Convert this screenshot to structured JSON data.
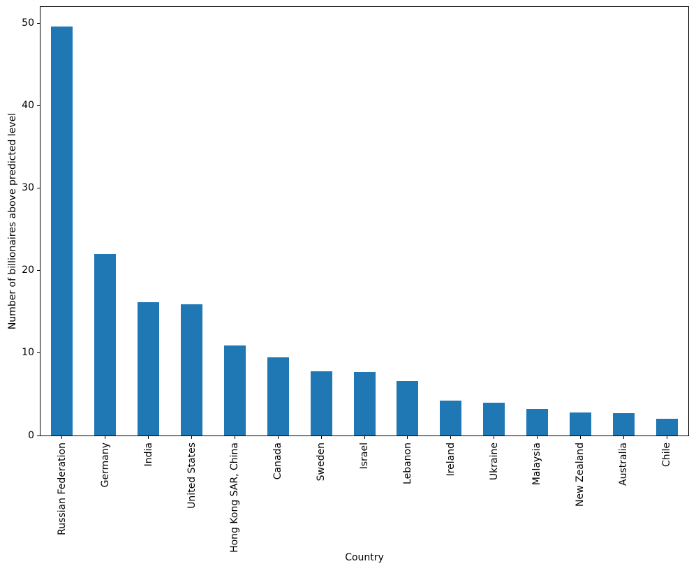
{
  "figure": {
    "background": "#ffffff"
  },
  "chart_data": {
    "type": "bar",
    "title": "",
    "xlabel": "Country",
    "ylabel": "Number of billionaires above predicted level",
    "categories": [
      "Russian Federation",
      "Germany",
      "India",
      "United States",
      "Hong Kong SAR, China",
      "Canada",
      "Sweden",
      "Israel",
      "Lebanon",
      "Ireland",
      "Ukraine",
      "Malaysia",
      "New Zealand",
      "Australia",
      "Chile"
    ],
    "values": [
      49.6,
      22.0,
      16.2,
      15.9,
      10.9,
      9.5,
      7.8,
      7.7,
      6.6,
      4.2,
      4.0,
      3.2,
      2.8,
      2.7,
      2.0
    ],
    "ylim": [
      0,
      52
    ],
    "yticks": [
      0,
      10,
      20,
      30,
      40,
      50
    ],
    "bar_color": "#1f77b4",
    "axis_color": "#000000",
    "grid": false,
    "legend": "none"
  }
}
